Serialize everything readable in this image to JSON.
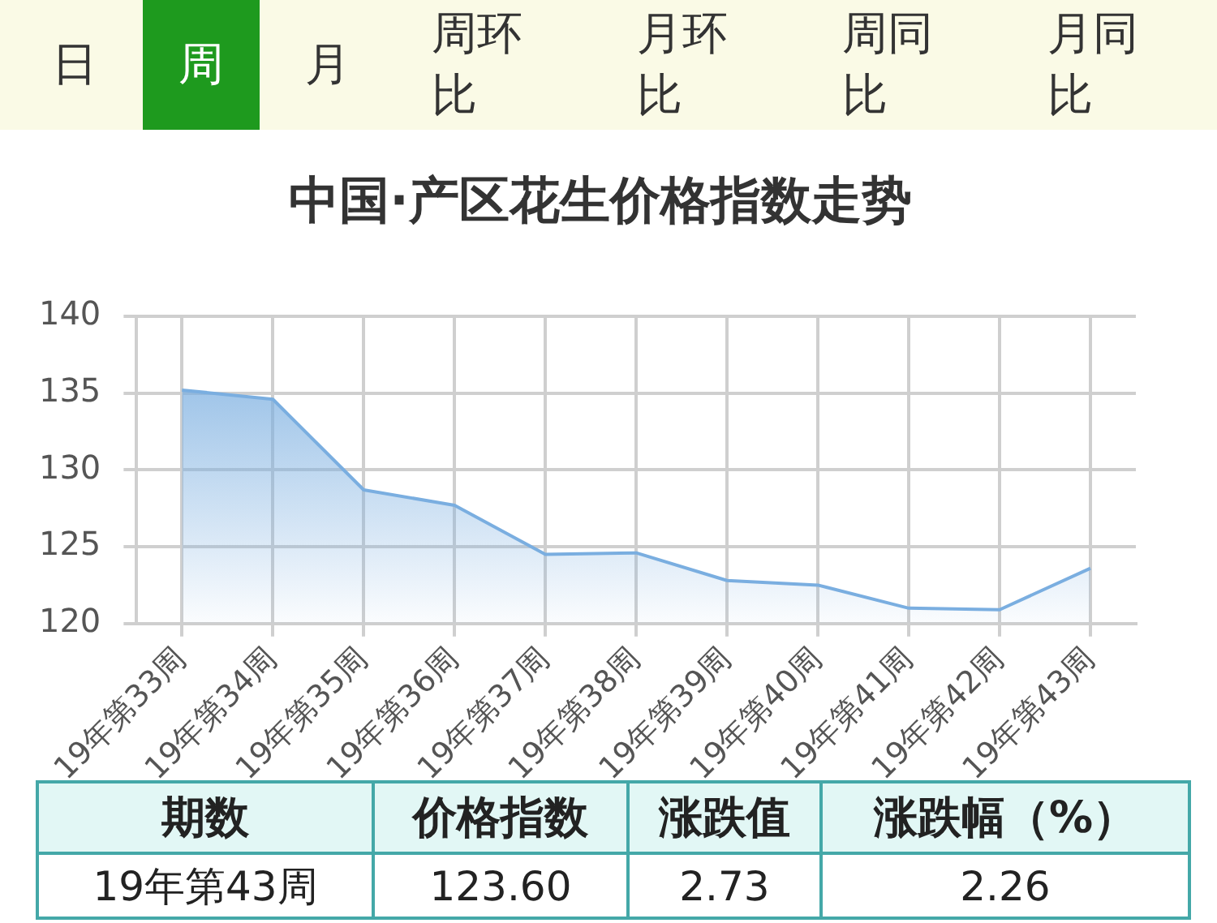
{
  "chart_data": [
    {
      "type": "other",
      "annotations": [
        "日",
        "周",
        "月",
        "周环比",
        "月环比",
        "周同比",
        "月同比"
      ]
    },
    {
      "type": "area",
      "title": "中国·产区花生价格指数走势",
      "categories": [
        "19年第33周",
        "19年第34周",
        "19年第35周",
        "19年第36周",
        "19年第37周",
        "19年第38周",
        "19年第39周",
        "19年第40周",
        "19年第41周",
        "19年第42周",
        "19年第43周"
      ],
      "series": [
        {
          "color": "#7aaee0",
          "values": [
            135.2,
            134.6,
            128.7,
            127.7,
            124.5,
            124.6,
            122.8,
            122.5,
            121.0,
            120.9,
            123.6
          ]
        }
      ],
      "ylim": [
        120,
        140
      ],
      "yticks": [
        120,
        125,
        130,
        135,
        140
      ],
      "grid": true,
      "legend": false,
      "marker": "none"
    },
    {
      "type": "other",
      "annotations": [
        "期数",
        "价格指数",
        "涨跌值",
        "涨跌幅（%）",
        "19年第43周",
        "123.60",
        "2.73",
        "2.26"
      ]
    }
  ]
}
